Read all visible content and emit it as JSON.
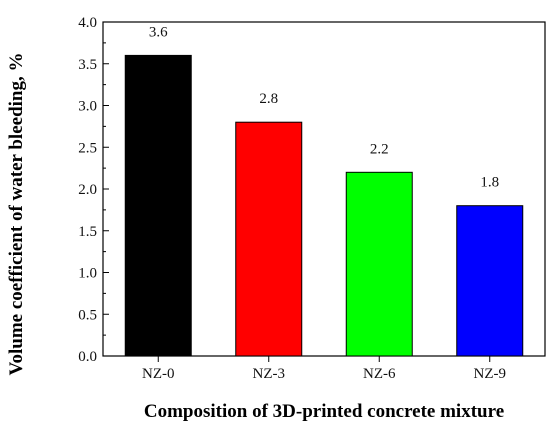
{
  "chart_data": {
    "type": "bar",
    "title": "",
    "xlabel": "Composition of 3D-printed concrete mixture",
    "ylabel": "Volume coefficient of water bleeding, %",
    "categories": [
      "NZ-0",
      "NZ-3",
      "NZ-6",
      "NZ-9"
    ],
    "values": [
      3.6,
      2.8,
      2.2,
      1.8
    ],
    "data_labels": [
      "3.6",
      "2.8",
      "2.2",
      "1.8"
    ],
    "bar_colors": [
      "#000000",
      "#ff0000",
      "#00ff00",
      "#0000ff"
    ],
    "ylim": [
      0,
      4
    ],
    "yticks": [
      0.0,
      0.5,
      1.0,
      1.5,
      2.0,
      2.5,
      3.0,
      3.5,
      4.0
    ],
    "ytick_labels": [
      "0.0",
      "0.5",
      "1.0",
      "1.5",
      "2.0",
      "2.5",
      "3.0",
      "3.5",
      "4.0"
    ],
    "grid": false,
    "legend": "none"
  }
}
